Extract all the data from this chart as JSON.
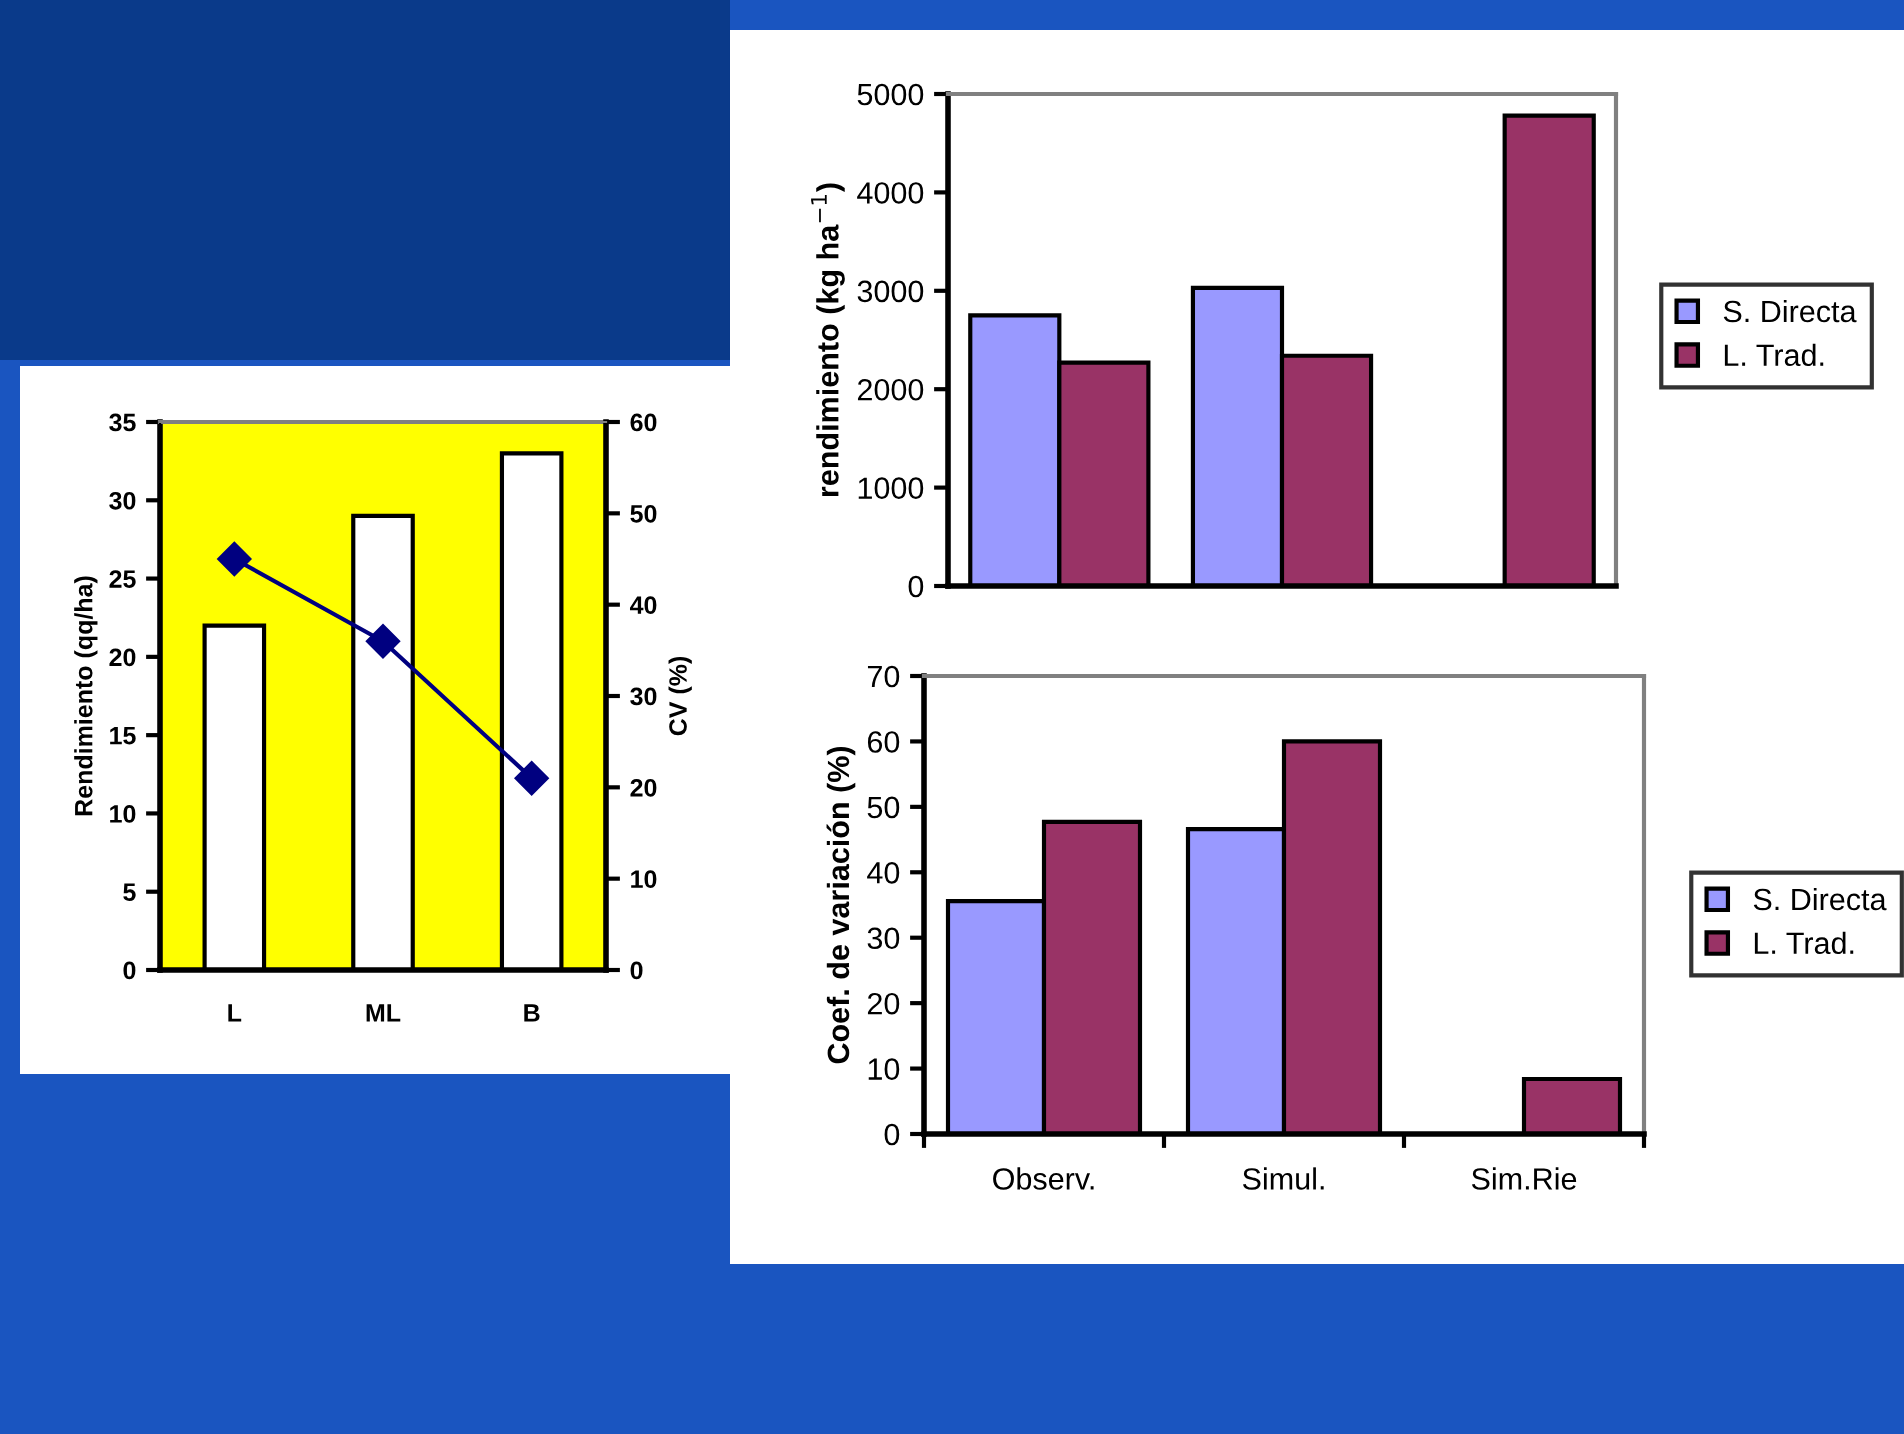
{
  "chart_data": [
    {
      "type": "bar",
      "categories": [
        "L",
        "ML",
        "B"
      ],
      "ylabel": "Rendimiento (qq/ha)",
      "y2label": "CV (%)",
      "ylim": [
        0,
        35
      ],
      "yticks": [
        0,
        5,
        10,
        15,
        20,
        25,
        30,
        35
      ],
      "y2lim": [
        0,
        60
      ],
      "y2ticks": [
        0,
        10,
        20,
        30,
        40,
        50,
        60
      ],
      "grid": false,
      "legend": false,
      "series": [
        {
          "color": "#ffffff",
          "values": [
            22,
            29,
            33
          ]
        },
        {
          "type": "line",
          "axis": "y2",
          "color": "#000080",
          "marker": "diamond",
          "values": [
            45,
            36,
            21
          ]
        }
      ]
    },
    {
      "type": "bar",
      "categories": [
        null,
        null,
        null
      ],
      "ylabel": "rendimiento (kg ha$^{−1}$)",
      "ylim": [
        0,
        5000
      ],
      "yticks": [
        0,
        1000,
        2000,
        3000,
        4000,
        5000
      ],
      "grid": false,
      "legend": "right",
      "tick_labels": "y",
      "series": [
        {
          "name": "S. Directa",
          "color": "#9999ff",
          "values": [
            2750,
            3030,
            null
          ]
        },
        {
          "name": "L. Trad.",
          "color": "#993366",
          "values": [
            2270,
            2340,
            4780
          ]
        }
      ]
    },
    {
      "type": "bar",
      "categories": [
        "Observ.",
        "Simul.",
        "Sim.Rie"
      ],
      "ylabel": "Coef. de variación (%)",
      "ylim": [
        0,
        70
      ],
      "yticks": [
        0,
        10,
        20,
        30,
        40,
        50,
        60,
        70
      ],
      "grid": false,
      "legend": "right",
      "series": [
        {
          "name": "S. Directa",
          "color": "#9999ff",
          "values": [
            35.6,
            46.6,
            null
          ]
        },
        {
          "name": "L. Trad.",
          "color": "#993366",
          "values": [
            47.7,
            60.0,
            8.4
          ]
        }
      ]
    }
  ]
}
